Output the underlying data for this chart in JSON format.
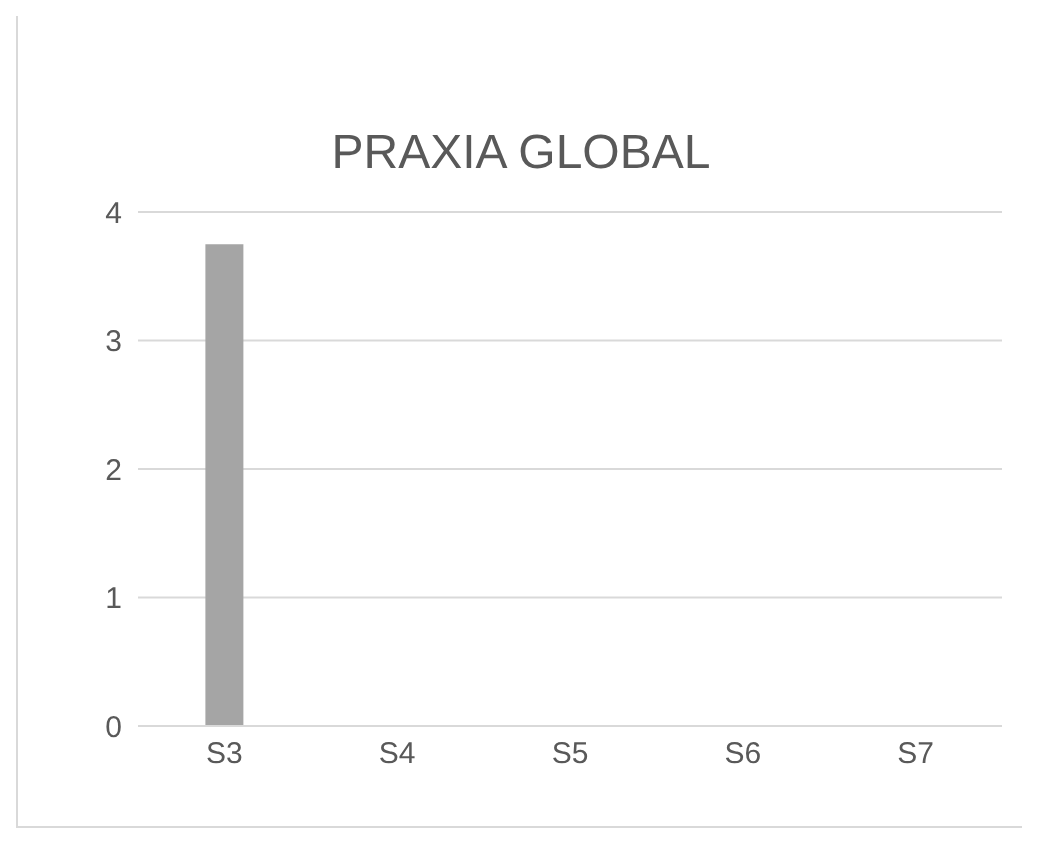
{
  "chart_data": {
    "type": "bar",
    "title": "PRAXIA GLOBAL",
    "categories": [
      "S3",
      "S4",
      "S5",
      "S6",
      "S7"
    ],
    "series": [
      {
        "color": "#a5a5a5",
        "values": [
          3.75,
          0,
          0,
          0,
          0
        ]
      }
    ],
    "ylim": [
      0,
      4
    ],
    "yticks": [
      0,
      1,
      2,
      3,
      4
    ],
    "grid": "y",
    "legend": false
  }
}
